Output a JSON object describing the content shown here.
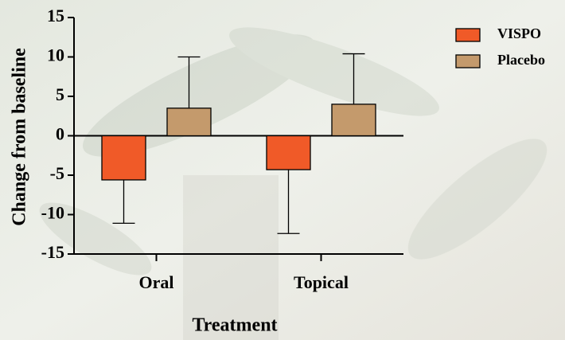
{
  "chart_data": {
    "type": "bar",
    "x_label": "Treatment",
    "y_label": "Change from baseline",
    "categories": [
      "Oral",
      "Topical"
    ],
    "series": [
      {
        "name": "VISPO",
        "color": "#f05a28",
        "values": [
          -5.6,
          -4.3
        ],
        "errors": [
          5.5,
          8.1
        ]
      },
      {
        "name": "Placebo",
        "color": "#c49a6c",
        "values": [
          3.5,
          4.0
        ],
        "errors": [
          6.5,
          6.4
        ]
      }
    ],
    "ylim": [
      -15,
      15
    ],
    "yticks": [
      -15,
      -10,
      -5,
      0,
      5,
      10,
      15
    ],
    "legend": "top-right"
  }
}
